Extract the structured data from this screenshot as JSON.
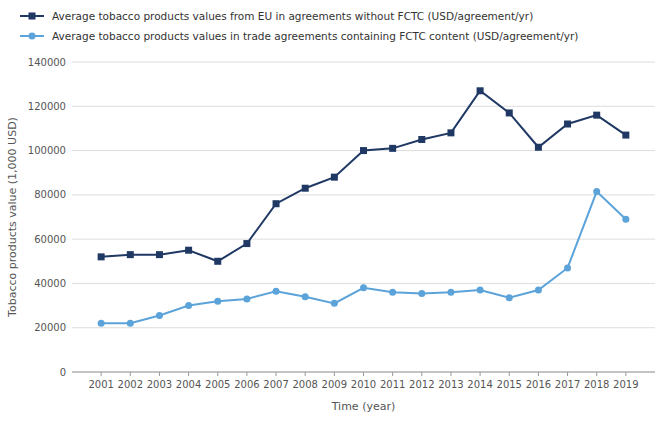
{
  "chart_data": {
    "type": "line",
    "x": [
      2001,
      2002,
      2003,
      2004,
      2005,
      2006,
      2007,
      2008,
      2009,
      2010,
      2011,
      2012,
      2013,
      2014,
      2015,
      2016,
      2017,
      2018,
      2019
    ],
    "xlim": [
      2000,
      2020
    ],
    "xticks": [
      2001,
      2002,
      2003,
      2004,
      2005,
      2006,
      2007,
      2008,
      2009,
      2010,
      2011,
      2012,
      2013,
      2014,
      2015,
      2016,
      2017,
      2018,
      2019
    ],
    "ylim": [
      0,
      140000
    ],
    "yticks": [
      0,
      20000,
      40000,
      60000,
      80000,
      100000,
      120000,
      140000
    ],
    "xlabel": "Time (year)",
    "ylabel": "Tobacco products value (1,000 USD)",
    "grid": true,
    "legend": "top left",
    "series": [
      {
        "name": "Average tobacco products values from EU in agreements without FCTC (USD/agreement/yr)",
        "color": "#1f3864",
        "marker": "square",
        "values": [
          52000,
          53000,
          53000,
          55000,
          50000,
          58000,
          76000,
          83000,
          88000,
          100000,
          101000,
          105000,
          108000,
          127000,
          117000,
          101500,
          112000,
          116000,
          107000
        ]
      },
      {
        "name": "Average tobacco products values in trade agreements containing FCTC content (USD/agreement/yr)",
        "color": "#5ba3d9",
        "marker": "circle",
        "values": [
          22000,
          22000,
          25500,
          30000,
          32000,
          33000,
          36500,
          34000,
          31000,
          38000,
          36000,
          35500,
          36000,
          37000,
          33500,
          37000,
          47000,
          81500,
          69000
        ]
      }
    ]
  }
}
